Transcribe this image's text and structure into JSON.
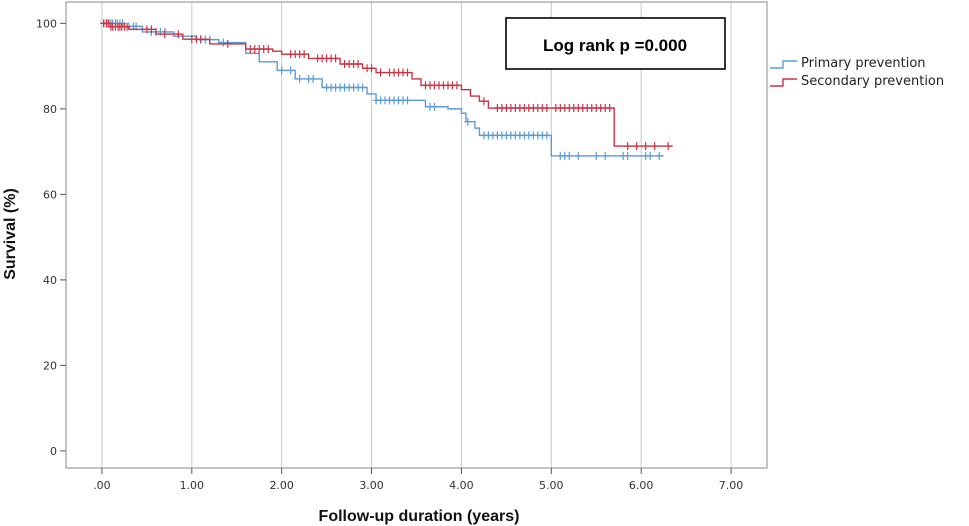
{
  "chart_data": {
    "type": "line",
    "subtype": "kaplan-meier",
    "title": "",
    "xlabel": "Follow-up duration (years)",
    "ylabel": "Survival (%)",
    "xlim": [
      -0.4,
      7.4
    ],
    "ylim": [
      -4,
      105
    ],
    "xticks": [
      0,
      1,
      2,
      3,
      4,
      5,
      6,
      7
    ],
    "xtick_labels": [
      ".00",
      "1.00",
      "2.00",
      "3.00",
      "4.00",
      "5.00",
      "6.00",
      "7.00"
    ],
    "yticks": [
      0,
      20,
      40,
      60,
      80,
      100
    ],
    "ytick_labels": [
      "0",
      "20",
      "40",
      "60",
      "80",
      "100"
    ],
    "grid": true,
    "legend_position": "top-right, outside plot",
    "annotation": "Log rank p =0.000",
    "series": [
      {
        "name": "Primary prevention",
        "color": "#5b9bdc",
        "steps": [
          [
            0,
            100
          ],
          [
            0.25,
            99.3
          ],
          [
            0.45,
            98
          ],
          [
            0.8,
            97
          ],
          [
            1.05,
            96.2
          ],
          [
            1.3,
            95.5
          ],
          [
            1.6,
            93
          ],
          [
            1.75,
            91
          ],
          [
            1.95,
            89
          ],
          [
            2.15,
            87
          ],
          [
            2.45,
            85
          ],
          [
            2.95,
            83.5
          ],
          [
            3.05,
            82
          ],
          [
            3.6,
            80.5
          ],
          [
            3.85,
            80
          ],
          [
            4.0,
            79
          ],
          [
            4.05,
            77
          ],
          [
            4.15,
            75.5
          ],
          [
            4.2,
            73.8
          ],
          [
            5.0,
            69
          ],
          [
            6.25,
            69
          ]
        ],
        "censored": [
          0.02,
          0.05,
          0.08,
          0.1,
          0.12,
          0.15,
          0.17,
          0.2,
          0.23,
          0.3,
          0.35,
          0.38,
          0.55,
          0.6,
          0.65,
          0.7,
          1.1,
          1.15,
          1.2,
          1.35,
          2.0,
          2.1,
          2.2,
          2.3,
          2.35,
          2.5,
          2.55,
          2.6,
          2.65,
          2.7,
          2.75,
          2.8,
          2.85,
          2.9,
          3.05,
          3.1,
          3.15,
          3.2,
          3.25,
          3.3,
          3.35,
          3.4,
          3.65,
          3.7,
          4.07,
          4.25,
          4.3,
          4.35,
          4.4,
          4.45,
          4.5,
          4.55,
          4.6,
          4.65,
          4.7,
          4.75,
          4.8,
          4.85,
          4.9,
          4.95,
          5.1,
          5.15,
          5.2,
          5.3,
          5.5,
          5.6,
          5.8,
          5.85,
          6.05,
          6.1,
          6.2
        ]
      },
      {
        "name": "Secondary prevention",
        "color": "#cc3344",
        "steps": [
          [
            0,
            100
          ],
          [
            0.1,
            99.2
          ],
          [
            0.3,
            98.6
          ],
          [
            0.6,
            97.5
          ],
          [
            0.9,
            96.3
          ],
          [
            1.2,
            95.2
          ],
          [
            1.6,
            94
          ],
          [
            1.9,
            93.5
          ],
          [
            2.0,
            92.8
          ],
          [
            2.3,
            91.8
          ],
          [
            2.65,
            90.5
          ],
          [
            2.9,
            89.5
          ],
          [
            3.05,
            88.5
          ],
          [
            3.45,
            87
          ],
          [
            3.55,
            85.5
          ],
          [
            4.0,
            84.5
          ],
          [
            4.1,
            83
          ],
          [
            4.2,
            81.8
          ],
          [
            4.3,
            80.2
          ],
          [
            5.7,
            71.3
          ],
          [
            6.35,
            71.3
          ]
        ],
        "censored": [
          0.02,
          0.05,
          0.07,
          0.1,
          0.12,
          0.15,
          0.18,
          0.2,
          0.22,
          0.25,
          0.28,
          0.5,
          0.55,
          0.7,
          0.85,
          1.0,
          1.05,
          1.1,
          1.4,
          1.65,
          1.7,
          1.75,
          1.8,
          1.85,
          2.1,
          2.15,
          2.2,
          2.25,
          2.4,
          2.45,
          2.5,
          2.55,
          2.6,
          2.7,
          2.75,
          2.8,
          2.85,
          2.95,
          3.0,
          3.1,
          3.2,
          3.25,
          3.3,
          3.35,
          3.4,
          3.6,
          3.65,
          3.7,
          3.75,
          3.8,
          3.85,
          3.9,
          3.95,
          4.25,
          4.4,
          4.45,
          4.5,
          4.55,
          4.6,
          4.65,
          4.7,
          4.75,
          4.8,
          4.85,
          4.9,
          4.95,
          5.05,
          5.1,
          5.15,
          5.2,
          5.25,
          5.3,
          5.35,
          5.4,
          5.45,
          5.5,
          5.55,
          5.6,
          5.65,
          5.85,
          5.95,
          6.05,
          6.15,
          6.3
        ]
      }
    ]
  }
}
